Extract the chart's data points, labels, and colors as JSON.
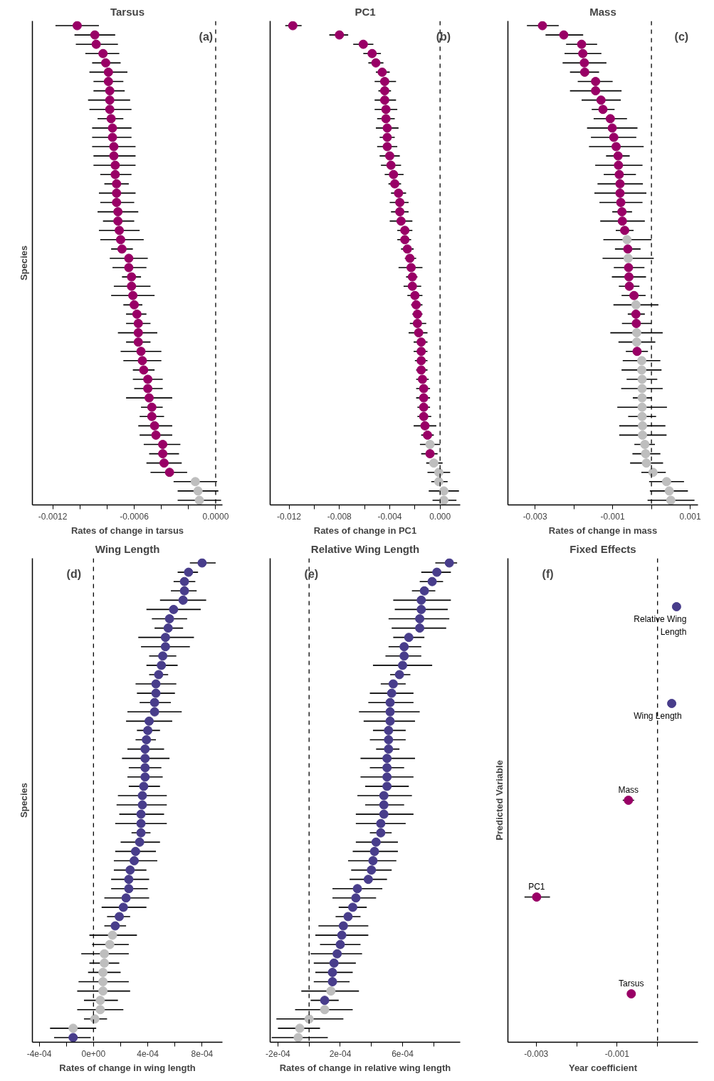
{
  "chart_data": [
    {
      "type": "scatter",
      "orientation": "horizontal",
      "marker": "circle",
      "tick_labels": "x",
      "title": "Tarsus",
      "xlabel": "Rates of change in tarsus",
      "ylabel": "Species",
      "annotations": [
        "(a)"
      ],
      "categories": [
        null,
        null,
        null,
        null,
        null,
        null,
        null,
        null,
        null,
        null,
        null,
        null,
        null,
        null,
        null,
        null,
        null,
        null,
        null,
        null,
        null,
        null,
        null,
        null,
        null,
        null,
        null,
        null,
        null,
        null,
        null,
        null,
        null,
        null,
        null,
        null,
        null,
        null,
        null,
        null,
        null,
        null,
        null,
        null,
        null,
        null,
        null,
        null,
        null,
        null,
        null,
        null
      ],
      "values": [
        -0.00102,
        -0.00089,
        -0.00088,
        -0.00083,
        -0.00081,
        -0.00079,
        -0.00079,
        -0.00078,
        -0.00078,
        -0.00078,
        -0.00077,
        -0.00076,
        -0.00076,
        -0.00075,
        -0.00075,
        -0.00074,
        -0.00074,
        -0.00073,
        -0.00073,
        -0.00073,
        -0.00072,
        -0.00072,
        -0.00071,
        -0.0007,
        -0.00069,
        -0.00064,
        -0.00064,
        -0.00062,
        -0.00062,
        -0.00061,
        -0.0006,
        -0.00058,
        -0.00057,
        -0.00057,
        -0.00057,
        -0.00055,
        -0.00054,
        -0.00053,
        -0.0005,
        -0.0005,
        -0.00049,
        -0.00047,
        -0.00047,
        -0.00045,
        -0.00044,
        -0.00039,
        -0.00039,
        -0.00038,
        -0.00034,
        -0.00015,
        -0.00013,
        -0.00012
      ],
      "errors": [
        [
          -0.00118,
          -0.00086
        ],
        [
          -0.00104,
          -0.00074
        ],
        [
          -0.00103,
          -0.00072
        ],
        [
          -0.00096,
          -0.00071
        ],
        [
          -0.00091,
          -0.0007
        ],
        [
          -0.00093,
          -0.00065
        ],
        [
          -0.0009,
          -0.00068
        ],
        [
          -0.0009,
          -0.00067
        ],
        [
          -0.00094,
          -0.00063
        ],
        [
          -0.00093,
          -0.00062
        ],
        [
          -0.00087,
          -0.00068
        ],
        [
          -0.00091,
          -0.00062
        ],
        [
          -0.00091,
          -0.00062
        ],
        [
          -0.00091,
          -0.00059
        ],
        [
          -0.0009,
          -0.00059
        ],
        [
          -0.0009,
          -0.00059
        ],
        [
          -0.00085,
          -0.00062
        ],
        [
          -0.00082,
          -0.00064
        ],
        [
          -0.00086,
          -0.00059
        ],
        [
          -0.00085,
          -0.0006
        ],
        [
          -0.00087,
          -0.00057
        ],
        [
          -0.00083,
          -0.0006
        ],
        [
          -0.00086,
          -0.00056
        ],
        [
          -0.00085,
          -0.00053
        ],
        [
          -0.00077,
          -0.00061
        ],
        [
          -0.00078,
          -0.0005
        ],
        [
          -0.00076,
          -0.00051
        ],
        [
          -0.00069,
          -0.00055
        ],
        [
          -0.00075,
          -0.00048
        ],
        [
          -0.00077,
          -0.00045
        ],
        [
          -0.00068,
          -0.00054
        ],
        [
          -0.00066,
          -0.00051
        ],
        [
          -0.00066,
          -0.00048
        ],
        [
          -0.00072,
          -0.00043
        ],
        [
          -0.00066,
          -0.00048
        ],
        [
          -0.0007,
          -0.0004
        ],
        [
          -0.00068,
          -0.0004
        ],
        [
          -0.00061,
          -0.00045
        ],
        [
          -0.00061,
          -0.00039
        ],
        [
          -0.0006,
          -0.00039
        ],
        [
          -0.00066,
          -0.00032
        ],
        [
          -0.00055,
          -0.00039
        ],
        [
          -0.00056,
          -0.00038
        ],
        [
          -0.00057,
          -0.00032
        ],
        [
          -0.00056,
          -0.00032
        ],
        [
          -0.00053,
          -0.00026
        ],
        [
          -0.00049,
          -0.00027
        ],
        [
          -0.00051,
          -0.00025
        ],
        [
          -0.00048,
          -0.00021
        ],
        [
          -0.00031,
          1e-05
        ],
        [
          -0.00028,
          2e-05
        ],
        [
          -0.00028,
          4e-05
        ]
      ],
      "colors": [
        "#990066",
        "#990066",
        "#990066",
        "#990066",
        "#990066",
        "#990066",
        "#990066",
        "#990066",
        "#990066",
        "#990066",
        "#990066",
        "#990066",
        "#990066",
        "#990066",
        "#990066",
        "#990066",
        "#990066",
        "#990066",
        "#990066",
        "#990066",
        "#990066",
        "#990066",
        "#990066",
        "#990066",
        "#990066",
        "#990066",
        "#990066",
        "#990066",
        "#990066",
        "#990066",
        "#990066",
        "#990066",
        "#990066",
        "#990066",
        "#990066",
        "#990066",
        "#990066",
        "#990066",
        "#990066",
        "#990066",
        "#990066",
        "#990066",
        "#990066",
        "#990066",
        "#990066",
        "#990066",
        "#990066",
        "#990066",
        "#990066",
        "#bebebe",
        "#bebebe",
        "#bebebe"
      ],
      "xlim": [
        -0.00135,
        5e-05
      ],
      "xticks": [
        -0.0012,
        {
          "value": -0.001,
          "label": null
        },
        {
          "value": -0.0008,
          "label": null
        },
        -0.0006,
        {
          "value": -0.0004,
          "label": null
        },
        {
          "value": -0.0002,
          "label": null
        },
        {
          "value": 0,
          "label": "0.0000"
        }
      ],
      "ref_lines": [
        {
          "axis": "x",
          "value": 0,
          "line_style": "dashed"
        }
      ]
    },
    {
      "type": "scatter",
      "orientation": "horizontal",
      "marker": "circle",
      "tick_labels": "x",
      "title": "PC1",
      "xlabel": "Rates of change in PC1",
      "annotations": [
        "(b)"
      ],
      "categories": [
        null,
        null,
        null,
        null,
        null,
        null,
        null,
        null,
        null,
        null,
        null,
        null,
        null,
        null,
        null,
        null,
        null,
        null,
        null,
        null,
        null,
        null,
        null,
        null,
        null,
        null,
        null,
        null,
        null,
        null,
        null,
        null,
        null,
        null,
        null,
        null,
        null,
        null,
        null,
        null,
        null,
        null,
        null,
        null,
        null,
        null,
        null,
        null,
        null,
        null,
        null,
        null
      ],
      "values": [
        -0.0117,
        -0.008,
        -0.0061,
        -0.0054,
        -0.0051,
        -0.0046,
        -0.0044,
        -0.0044,
        -0.0044,
        -0.0043,
        -0.0043,
        -0.0042,
        -0.0042,
        -0.0042,
        -0.004,
        -0.0039,
        -0.0037,
        -0.0036,
        -0.0033,
        -0.0032,
        -0.0032,
        -0.0031,
        -0.0028,
        -0.0028,
        -0.0026,
        -0.0024,
        -0.0023,
        -0.0022,
        -0.0022,
        -0.002,
        -0.0019,
        -0.0018,
        -0.0018,
        -0.0017,
        -0.0015,
        -0.0015,
        -0.0015,
        -0.0015,
        -0.0014,
        -0.0013,
        -0.0013,
        -0.0013,
        -0.0013,
        -0.0012,
        -0.001,
        -0.0008,
        -0.0008,
        -0.0005,
        -0.0001,
        -0.0001,
        0.0003,
        0.0003
      ],
      "errors": [
        [
          -0.0123,
          -0.011
        ],
        [
          -0.0088,
          -0.0073
        ],
        [
          -0.0069,
          -0.0053
        ],
        [
          -0.0061,
          -0.0047
        ],
        [
          -0.0057,
          -0.0045
        ],
        [
          -0.0051,
          -0.004
        ],
        [
          -0.0052,
          -0.0035
        ],
        [
          -0.0049,
          -0.0039
        ],
        [
          -0.0052,
          -0.0035
        ],
        [
          -0.0052,
          -0.0034
        ],
        [
          -0.005,
          -0.0036
        ],
        [
          -0.0051,
          -0.0033
        ],
        [
          -0.0048,
          -0.0036
        ],
        [
          -0.005,
          -0.0034
        ],
        [
          -0.0048,
          -0.0032
        ],
        [
          -0.0047,
          -0.0031
        ],
        [
          -0.0044,
          -0.0029
        ],
        [
          -0.0041,
          -0.0031
        ],
        [
          -0.0039,
          -0.0027
        ],
        [
          -0.004,
          -0.0025
        ],
        [
          -0.0039,
          -0.0025
        ],
        [
          -0.004,
          -0.0022
        ],
        [
          -0.0034,
          -0.0022
        ],
        [
          -0.0034,
          -0.0023
        ],
        [
          -0.0031,
          -0.0021
        ],
        [
          -0.0028,
          -0.0019
        ],
        [
          -0.0033,
          -0.0014
        ],
        [
          -0.0027,
          -0.0018
        ],
        [
          -0.0029,
          -0.0015
        ],
        [
          -0.0026,
          -0.0014
        ],
        [
          -0.0023,
          -0.0014
        ],
        [
          -0.0022,
          -0.0014
        ],
        [
          -0.0024,
          -0.0011
        ],
        [
          -0.0025,
          -0.001
        ],
        [
          -0.0021,
          -0.001
        ],
        [
          -0.0021,
          -0.001
        ],
        [
          -0.002,
          -0.001
        ],
        [
          -0.0019,
          -0.001
        ],
        [
          -0.0019,
          -0.0009
        ],
        [
          -0.0019,
          -0.0008
        ],
        [
          -0.0019,
          -0.0008
        ],
        [
          -0.0018,
          -0.0008
        ],
        [
          -0.0018,
          -0.0007
        ],
        [
          -0.0021,
          -0.0003
        ],
        [
          -0.0015,
          -0.0005
        ],
        [
          -0.0016,
          0
        ],
        [
          -0.0015,
          -0.0002
        ],
        [
          -0.0011,
          0.0002
        ],
        [
          -0.001,
          0.0008
        ],
        [
          -0.0007,
          0.0006
        ],
        [
          -0.0009,
          0.0015
        ],
        [
          -0.0006,
          0.0013
        ]
      ],
      "colors": [
        "#990066",
        "#990066",
        "#990066",
        "#990066",
        "#990066",
        "#990066",
        "#990066",
        "#990066",
        "#990066",
        "#990066",
        "#990066",
        "#990066",
        "#990066",
        "#990066",
        "#990066",
        "#990066",
        "#990066",
        "#990066",
        "#990066",
        "#990066",
        "#990066",
        "#990066",
        "#990066",
        "#990066",
        "#990066",
        "#990066",
        "#990066",
        "#990066",
        "#990066",
        "#990066",
        "#990066",
        "#990066",
        "#990066",
        "#990066",
        "#990066",
        "#990066",
        "#990066",
        "#990066",
        "#990066",
        "#990066",
        "#990066",
        "#990066",
        "#990066",
        "#990066",
        "#990066",
        "#bebebe",
        "#990066",
        "#bebebe",
        "#bebebe",
        "#bebebe",
        "#bebebe",
        "#bebebe"
      ],
      "xlim": [
        -0.0135,
        0.0016
      ],
      "xticks": [
        -0.012,
        {
          "value": -0.01,
          "label": null
        },
        -0.008,
        {
          "value": -0.006,
          "label": null
        },
        -0.004,
        {
          "value": -0.002,
          "label": null
        },
        {
          "value": 0,
          "label": "0.000"
        }
      ],
      "ref_lines": [
        {
          "axis": "x",
          "value": 0,
          "line_style": "dashed"
        }
      ]
    },
    {
      "type": "scatter",
      "orientation": "horizontal",
      "marker": "circle",
      "tick_labels": "x",
      "title": "Mass",
      "xlabel": "Rates of change in mass",
      "annotations": [
        "(c)"
      ],
      "categories": [
        null,
        null,
        null,
        null,
        null,
        null,
        null,
        null,
        null,
        null,
        null,
        null,
        null,
        null,
        null,
        null,
        null,
        null,
        null,
        null,
        null,
        null,
        null,
        null,
        null,
        null,
        null,
        null,
        null,
        null,
        null,
        null,
        null,
        null,
        null,
        null,
        null,
        null,
        null,
        null,
        null,
        null,
        null,
        null,
        null,
        null,
        null,
        null,
        null,
        null,
        null,
        null
      ],
      "values": [
        -0.00281,
        -0.00226,
        -0.0018,
        -0.00177,
        -0.00173,
        -0.00172,
        -0.00144,
        -0.00144,
        -0.0013,
        -0.00125,
        -0.00106,
        -0.00101,
        -0.00097,
        -0.00091,
        -0.00086,
        -0.00085,
        -0.00083,
        -0.00081,
        -0.00081,
        -0.00079,
        -0.00076,
        -0.00075,
        -0.00069,
        -0.00063,
        -0.00061,
        -0.0006,
        -0.00059,
        -0.00058,
        -0.00057,
        -0.00045,
        -0.0004,
        -0.0004,
        -0.00039,
        -0.00038,
        -0.00038,
        -0.00037,
        -0.00025,
        -0.00025,
        -0.00024,
        -0.00024,
        -0.00024,
        -0.00024,
        -0.00024,
        -0.00023,
        -0.00023,
        -0.00017,
        -0.00015,
        -0.00013,
        4e-05,
        0.00039,
        0.00046,
        0.0005
      ],
      "errors": [
        [
          -0.00321,
          -0.00239
        ],
        [
          -0.00273,
          -0.00176
        ],
        [
          -0.0022,
          -0.0014
        ],
        [
          -0.00224,
          -0.00129
        ],
        [
          -0.00229,
          -0.00116
        ],
        [
          -0.0021,
          -0.00135
        ],
        [
          -0.0019,
          -0.001
        ],
        [
          -0.0021,
          -0.00077
        ],
        [
          -0.0018,
          -0.00079
        ],
        [
          -0.00154,
          -0.00095
        ],
        [
          -0.00149,
          -0.00063
        ],
        [
          -0.00166,
          -0.00036
        ],
        [
          -0.00156,
          -0.00039
        ],
        [
          -0.00161,
          -0.0002
        ],
        [
          -0.00117,
          -0.00056
        ],
        [
          -0.00145,
          -0.00023
        ],
        [
          -0.00123,
          -0.0004
        ],
        [
          -0.00139,
          -0.00022
        ],
        [
          -0.00147,
          -0.00013
        ],
        [
          -0.00134,
          -0.00023
        ],
        [
          -0.00101,
          -0.0005
        ],
        [
          -0.00132,
          -0.00017
        ],
        [
          -0.00092,
          -0.00046
        ],
        [
          -0.00124,
          0
        ],
        [
          -0.00094,
          -0.00028
        ],
        [
          -0.00126,
          6e-05
        ],
        [
          -0.00097,
          -0.00018
        ],
        [
          -0.00102,
          -0.00014
        ],
        [
          -0.00084,
          -0.00031
        ],
        [
          -0.00077,
          -0.00015
        ],
        [
          -0.00098,
          0.00018
        ],
        [
          -0.00061,
          -0.00017
        ],
        [
          -0.00076,
          0
        ],
        [
          -0.00106,
          0.00029
        ],
        [
          -0.00085,
          0.0001
        ],
        [
          -0.00066,
          -9e-05
        ],
        [
          -0.00074,
          0.00023
        ],
        [
          -0.00077,
          0.00026
        ],
        [
          -0.00064,
          0.00015
        ],
        [
          -0.00078,
          0.00029
        ],
        [
          -0.00048,
          1e-05
        ],
        [
          -0.00088,
          0.0004
        ],
        [
          -0.0006,
          0.00012
        ],
        [
          -0.00083,
          0.00036
        ],
        [
          -0.00083,
          0.00039
        ],
        [
          -0.00044,
          9e-05
        ],
        [
          -0.00049,
          0.00023
        ],
        [
          -0.00055,
          0.0003
        ],
        [
          -0.00026,
          0.00037
        ],
        [
          -6e-05,
          0.00084
        ],
        [
          -4e-05,
          0.00094
        ],
        [
          -0.0001,
          0.00111
        ]
      ],
      "colors": [
        "#990066",
        "#990066",
        "#990066",
        "#990066",
        "#990066",
        "#990066",
        "#990066",
        "#990066",
        "#990066",
        "#990066",
        "#990066",
        "#990066",
        "#990066",
        "#990066",
        "#990066",
        "#990066",
        "#990066",
        "#990066",
        "#990066",
        "#990066",
        "#990066",
        "#990066",
        "#990066",
        "#bebebe",
        "#990066",
        "#bebebe",
        "#990066",
        "#990066",
        "#990066",
        "#990066",
        "#bebebe",
        "#990066",
        "#990066",
        "#bebebe",
        "#bebebe",
        "#990066",
        "#bebebe",
        "#bebebe",
        "#bebebe",
        "#bebebe",
        "#bebebe",
        "#bebebe",
        "#bebebe",
        "#bebebe",
        "#bebebe",
        "#bebebe",
        "#bebebe",
        "#bebebe",
        "#bebebe",
        "#bebebe",
        "#bebebe",
        "#bebebe"
      ],
      "xlim": [
        -0.0037,
        0.0012
      ],
      "xticks": [
        -0.003,
        {
          "value": -0.002,
          "label": null
        },
        -0.001,
        {
          "value": 0,
          "label": null
        },
        0.001
      ],
      "ref_lines": [
        {
          "axis": "x",
          "value": 0,
          "line_style": "dashed"
        }
      ]
    },
    {
      "type": "scatter",
      "orientation": "horizontal",
      "marker": "circle",
      "tick_labels": "x",
      "title": "Wing Length",
      "xlabel": "Rates of change in wing length",
      "ylabel": "Species",
      "annotations": [
        "(d)"
      ],
      "categories": [
        null,
        null,
        null,
        null,
        null,
        null,
        null,
        null,
        null,
        null,
        null,
        null,
        null,
        null,
        null,
        null,
        null,
        null,
        null,
        null,
        null,
        null,
        null,
        null,
        null,
        null,
        null,
        null,
        null,
        null,
        null,
        null,
        null,
        null,
        null,
        null,
        null,
        null,
        null,
        null,
        null,
        null,
        null,
        null,
        null,
        null,
        null,
        null,
        null,
        null,
        null,
        null
      ],
      "values": [
        0.0008,
        0.0007,
        0.00067,
        0.00067,
        0.00066,
        0.00059,
        0.00056,
        0.00055,
        0.00053,
        0.00053,
        0.00051,
        0.0005,
        0.00048,
        0.00046,
        0.00046,
        0.00045,
        0.00045,
        0.00041,
        0.0004,
        0.00039,
        0.00038,
        0.00038,
        0.00038,
        0.00038,
        0.00037,
        0.00036,
        0.00036,
        0.00035,
        0.00035,
        0.00035,
        0.00034,
        0.00031,
        0.0003,
        0.00027,
        0.00026,
        0.00026,
        0.00024,
        0.00022,
        0.00019,
        0.00016,
        0.00014,
        0.00012,
        8e-05,
        8e-05,
        7e-05,
        7e-05,
        7e-05,
        5e-05,
        5e-05,
        1e-05,
        -0.00015,
        -0.00015
      ],
      "errors": [
        [
          0.00071,
          0.0009
        ],
        [
          0.00062,
          0.00077
        ],
        [
          0.00059,
          0.00075
        ],
        [
          0.00057,
          0.00076
        ],
        [
          0.00049,
          0.00083
        ],
        [
          0.00039,
          0.00079
        ],
        [
          0.00043,
          0.00069
        ],
        [
          0.00045,
          0.00066
        ],
        [
          0.00033,
          0.00074
        ],
        [
          0.00035,
          0.00071
        ],
        [
          0.00041,
          0.00061
        ],
        [
          0.00039,
          0.00062
        ],
        [
          0.00041,
          0.00055
        ],
        [
          0.00031,
          0.00061
        ],
        [
          0.00032,
          0.0006
        ],
        [
          0.00034,
          0.00057
        ],
        [
          0.00025,
          0.00065
        ],
        [
          0.00024,
          0.00058
        ],
        [
          0.00032,
          0.00049
        ],
        [
          0.00031,
          0.00046
        ],
        [
          0.00025,
          0.00052
        ],
        [
          0.00021,
          0.00056
        ],
        [
          0.00026,
          0.0005
        ],
        [
          0.00025,
          0.00051
        ],
        [
          0.00026,
          0.00049
        ],
        [
          0.00018,
          0.00054
        ],
        [
          0.00017,
          0.00054
        ],
        [
          0.00019,
          0.00052
        ],
        [
          0.00016,
          0.00054
        ],
        [
          0.00028,
          0.00042
        ],
        [
          0.0002,
          0.00049
        ],
        [
          0.00016,
          0.00046
        ],
        [
          0.00015,
          0.00047
        ],
        [
          0.00015,
          0.00039
        ],
        [
          0.00013,
          0.00041
        ],
        [
          0.00013,
          0.0004
        ],
        [
          8e-05,
          0.00041
        ],
        [
          6e-05,
          0.00039
        ],
        [
          0.0001,
          0.00027
        ],
        [
          8e-05,
          0.00024
        ],
        [
          -3e-05,
          0.00032
        ],
        [
          -1e-05,
          0.00026
        ],
        [
          -9e-05,
          0.00026
        ],
        [
          -3e-05,
          0.00019
        ],
        [
          -4e-05,
          0.0002
        ],
        [
          -0.00011,
          0.00026
        ],
        [
          -0.00012,
          0.00027
        ],
        [
          -7e-05,
          0.00018
        ],
        [
          -0.00012,
          0.00022
        ],
        [
          -7e-05,
          0.0001
        ],
        [
          -0.00032,
          2e-05
        ],
        [
          -0.00029,
          -2e-05
        ]
      ],
      "colors": [
        "#483d8b",
        "#483d8b",
        "#483d8b",
        "#483d8b",
        "#483d8b",
        "#483d8b",
        "#483d8b",
        "#483d8b",
        "#483d8b",
        "#483d8b",
        "#483d8b",
        "#483d8b",
        "#483d8b",
        "#483d8b",
        "#483d8b",
        "#483d8b",
        "#483d8b",
        "#483d8b",
        "#483d8b",
        "#483d8b",
        "#483d8b",
        "#483d8b",
        "#483d8b",
        "#483d8b",
        "#483d8b",
        "#483d8b",
        "#483d8b",
        "#483d8b",
        "#483d8b",
        "#483d8b",
        "#483d8b",
        "#483d8b",
        "#483d8b",
        "#483d8b",
        "#483d8b",
        "#483d8b",
        "#483d8b",
        "#483d8b",
        "#483d8b",
        "#483d8b",
        "#bebebe",
        "#bebebe",
        "#bebebe",
        "#bebebe",
        "#bebebe",
        "#bebebe",
        "#bebebe",
        "#bebebe",
        "#bebebe",
        "#bebebe",
        "#bebebe",
        "#483d8b"
      ],
      "xlim": [
        -0.00045,
        0.00095
      ],
      "xticks": [
        {
          "value": -0.0004,
          "label": "-4e-04"
        },
        {
          "value": -0.0002,
          "label": null
        },
        {
          "value": 0,
          "label": "0e+00"
        },
        {
          "value": 0.0002,
          "label": null
        },
        {
          "value": 0.0004,
          "label": "4e-04"
        },
        {
          "value": 0.0006,
          "label": null
        },
        {
          "value": 0.0008,
          "label": "8e-04"
        }
      ],
      "ref_lines": [
        {
          "axis": "x",
          "value": 0,
          "line_style": "dashed"
        }
      ]
    },
    {
      "type": "scatter",
      "orientation": "horizontal",
      "marker": "circle",
      "tick_labels": "x",
      "title": "Relative Wing Length",
      "xlabel": "Rates of change in relative wing length",
      "annotations": [
        "(e)"
      ],
      "categories": [
        null,
        null,
        null,
        null,
        null,
        null,
        null,
        null,
        null,
        null,
        null,
        null,
        null,
        null,
        null,
        null,
        null,
        null,
        null,
        null,
        null,
        null,
        null,
        null,
        null,
        null,
        null,
        null,
        null,
        null,
        null,
        null,
        null,
        null,
        null,
        null,
        null,
        null,
        null,
        null,
        null,
        null,
        null,
        null,
        null,
        null,
        null,
        null,
        null,
        null,
        null,
        null
      ],
      "values": [
        0.0009,
        0.00082,
        0.00079,
        0.00074,
        0.00072,
        0.00072,
        0.00071,
        0.00071,
        0.00064,
        0.00061,
        0.00061,
        0.0006,
        0.00058,
        0.00054,
        0.00053,
        0.00052,
        0.00052,
        0.00052,
        0.00051,
        0.00051,
        0.00051,
        0.0005,
        0.0005,
        0.0005,
        0.0005,
        0.00048,
        0.00048,
        0.00048,
        0.00046,
        0.00046,
        0.00043,
        0.00042,
        0.00041,
        0.0004,
        0.00038,
        0.00031,
        0.0003,
        0.00028,
        0.00025,
        0.00022,
        0.00021,
        0.0002,
        0.00018,
        0.00016,
        0.00015,
        0.00015,
        0.00014,
        0.0001,
        0.0001,
        0,
        -6e-05,
        -7e-05
      ],
      "errors": [
        [
          0.00081,
          0.00095
        ],
        [
          0.00072,
          0.00091
        ],
        [
          0.00071,
          0.00086
        ],
        [
          0.00066,
          0.00081
        ],
        [
          0.00054,
          0.00091
        ],
        [
          0.00055,
          0.00089
        ],
        [
          0.00051,
          0.0009
        ],
        [
          0.00053,
          0.00088
        ],
        [
          0.00054,
          0.00074
        ],
        [
          0.00051,
          0.00072
        ],
        [
          0.00049,
          0.00072
        ],
        [
          0.00041,
          0.00079
        ],
        [
          0.00052,
          0.00065
        ],
        [
          0.00046,
          0.00062
        ],
        [
          0.00039,
          0.00067
        ],
        [
          0.00038,
          0.00067
        ],
        [
          0.00032,
          0.00071
        ],
        [
          0.00035,
          0.00068
        ],
        [
          0.00041,
          0.00062
        ],
        [
          0.00039,
          0.00062
        ],
        [
          0.00043,
          0.00058
        ],
        [
          0.00033,
          0.00068
        ],
        [
          0.00039,
          0.00061
        ],
        [
          0.00033,
          0.00067
        ],
        [
          0.00036,
          0.00064
        ],
        [
          0.00031,
          0.00066
        ],
        [
          0.00036,
          0.00061
        ],
        [
          0.0003,
          0.00067
        ],
        [
          0.0003,
          0.00062
        ],
        [
          0.00039,
          0.00053
        ],
        [
          0.0003,
          0.00057
        ],
        [
          0.00028,
          0.00057
        ],
        [
          0.00025,
          0.00056
        ],
        [
          0.00027,
          0.00053
        ],
        [
          0.00026,
          0.0005
        ],
        [
          0.00015,
          0.00047
        ],
        [
          0.00015,
          0.00043
        ],
        [
          0.00019,
          0.00037
        ],
        [
          0.00017,
          0.00033
        ],
        [
          6e-05,
          0.00038
        ],
        [
          4e-05,
          0.00038
        ],
        [
          7e-05,
          0.00033
        ],
        [
          1e-05,
          0.00034
        ],
        [
          3e-05,
          0.0003
        ],
        [
          4e-05,
          0.00028
        ],
        [
          3e-05,
          0.00026
        ],
        [
          -5e-05,
          0.00032
        ],
        [
          1e-05,
          0.00019
        ],
        [
          -9e-05,
          0.00028
        ],
        [
          -0.00021,
          0.00022
        ],
        [
          -0.0002,
          7e-05
        ],
        [
          -0.00024,
          0.00012
        ]
      ],
      "colors": [
        "#483d8b",
        "#483d8b",
        "#483d8b",
        "#483d8b",
        "#483d8b",
        "#483d8b",
        "#483d8b",
        "#483d8b",
        "#483d8b",
        "#483d8b",
        "#483d8b",
        "#483d8b",
        "#483d8b",
        "#483d8b",
        "#483d8b",
        "#483d8b",
        "#483d8b",
        "#483d8b",
        "#483d8b",
        "#483d8b",
        "#483d8b",
        "#483d8b",
        "#483d8b",
        "#483d8b",
        "#483d8b",
        "#483d8b",
        "#483d8b",
        "#483d8b",
        "#483d8b",
        "#483d8b",
        "#483d8b",
        "#483d8b",
        "#483d8b",
        "#483d8b",
        "#483d8b",
        "#483d8b",
        "#483d8b",
        "#483d8b",
        "#483d8b",
        "#483d8b",
        "#483d8b",
        "#483d8b",
        "#483d8b",
        "#483d8b",
        "#483d8b",
        "#483d8b",
        "#bebebe",
        "#483d8b",
        "#bebebe",
        "#bebebe",
        "#bebebe",
        "#bebebe"
      ],
      "xlim": [
        -0.00025,
        0.00097
      ],
      "xticks": [
        {
          "value": -0.0002,
          "label": "-2e-04"
        },
        {
          "value": 0,
          "label": null
        },
        {
          "value": 0.0002,
          "label": "2e-04"
        },
        {
          "value": 0.0004,
          "label": null
        },
        {
          "value": 0.0006,
          "label": "6e-04"
        },
        {
          "value": 0.0008,
          "label": null
        }
      ],
      "ref_lines": [
        {
          "axis": "x",
          "value": 0,
          "line_style": "dashed"
        }
      ]
    },
    {
      "type": "scatter",
      "orientation": "horizontal",
      "marker": "circle",
      "tick_labels": "x",
      "title": "Fixed Effects",
      "xlabel": "Year coefficient",
      "ylabel": "Predicted Variable",
      "annotations": [
        "(f)"
      ],
      "categories": [
        "Relative Wing Length",
        "Wing Length",
        "Mass",
        "PC1",
        "Tarsus"
      ],
      "values": [
        0.00047,
        0.00035,
        -0.00072,
        -0.00299,
        -0.00065
      ],
      "errors": [
        null,
        null,
        [
          -0.00086,
          -0.00058
        ],
        [
          -0.00329,
          -0.00266
        ],
        null
      ],
      "colors": [
        "#483d8b",
        "#483d8b",
        "#990066",
        "#990066",
        "#990066"
      ],
      "xlim": [
        -0.0037,
        0.001
      ],
      "xticks": [
        -0.003,
        {
          "value": -0.002,
          "label": null
        },
        -0.001,
        {
          "value": 0,
          "label": null
        }
      ],
      "ref_lines": [
        {
          "axis": "x",
          "value": 0,
          "line_style": "dashed"
        }
      ]
    }
  ]
}
